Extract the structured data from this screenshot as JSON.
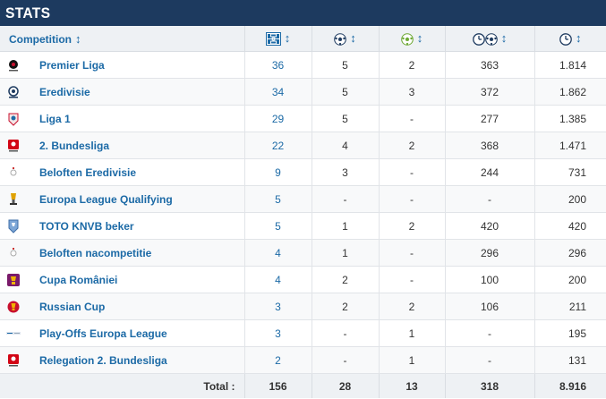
{
  "title": "STATS",
  "header": {
    "competition": "Competition",
    "sort_glyph": "↕",
    "icons": [
      "appearances-icon",
      "goals-icon",
      "assists-icon",
      "minutes-per-goal-icon",
      "minutes-played-icon"
    ]
  },
  "rows": [
    {
      "name": "Premier Liga",
      "logo": "premier-liga-logo",
      "apps": "36",
      "goals": "5",
      "assists": "2",
      "min_per_goal": "363",
      "minutes": "1.814"
    },
    {
      "name": "Eredivisie",
      "logo": "eredivisie-logo",
      "apps": "34",
      "goals": "5",
      "assists": "3",
      "min_per_goal": "372",
      "minutes": "1.862"
    },
    {
      "name": "Liga 1",
      "logo": "liga-1-logo",
      "apps": "29",
      "goals": "5",
      "assists": "-",
      "min_per_goal": "277",
      "minutes": "1.385"
    },
    {
      "name": "2. Bundesliga",
      "logo": "2-bundesliga-logo",
      "apps": "22",
      "goals": "4",
      "assists": "2",
      "min_per_goal": "368",
      "minutes": "1.471"
    },
    {
      "name": "Beloften Eredivisie",
      "logo": "beloften-eredivisie-logo",
      "apps": "9",
      "goals": "3",
      "assists": "-",
      "min_per_goal": "244",
      "minutes": "731"
    },
    {
      "name": "Europa League Qualifying",
      "logo": "europa-league-qualifying-logo",
      "apps": "5",
      "goals": "-",
      "assists": "-",
      "min_per_goal": "-",
      "minutes": "200"
    },
    {
      "name": "TOTO KNVB beker",
      "logo": "knvb-beker-logo",
      "apps": "5",
      "goals": "1",
      "assists": "2",
      "min_per_goal": "420",
      "minutes": "420"
    },
    {
      "name": "Beloften nacompetitie",
      "logo": "beloften-nacompetitie-logo",
      "apps": "4",
      "goals": "1",
      "assists": "-",
      "min_per_goal": "296",
      "minutes": "296"
    },
    {
      "name": "Cupa României",
      "logo": "cupa-romaniei-logo",
      "apps": "4",
      "goals": "2",
      "assists": "-",
      "min_per_goal": "100",
      "minutes": "200"
    },
    {
      "name": "Russian Cup",
      "logo": "russian-cup-logo",
      "apps": "3",
      "goals": "2",
      "assists": "2",
      "min_per_goal": "106",
      "minutes": "211"
    },
    {
      "name": "Play-Offs Europa League",
      "logo": "play-offs-europa-league-logo",
      "apps": "3",
      "goals": "-",
      "assists": "1",
      "min_per_goal": "-",
      "minutes": "195"
    },
    {
      "name": "Relegation 2. Bundesliga",
      "logo": "relegation-2-bundesliga-logo",
      "apps": "2",
      "goals": "-",
      "assists": "1",
      "min_per_goal": "-",
      "minutes": "131"
    }
  ],
  "totals": {
    "label": "Total :",
    "apps": "156",
    "goals": "28",
    "assists": "13",
    "min_per_goal": "318",
    "minutes": "8.916"
  },
  "colors": {
    "title_bg": "#1d3a5f",
    "link": "#1c6aa6",
    "header_bg": "#eef1f4"
  }
}
